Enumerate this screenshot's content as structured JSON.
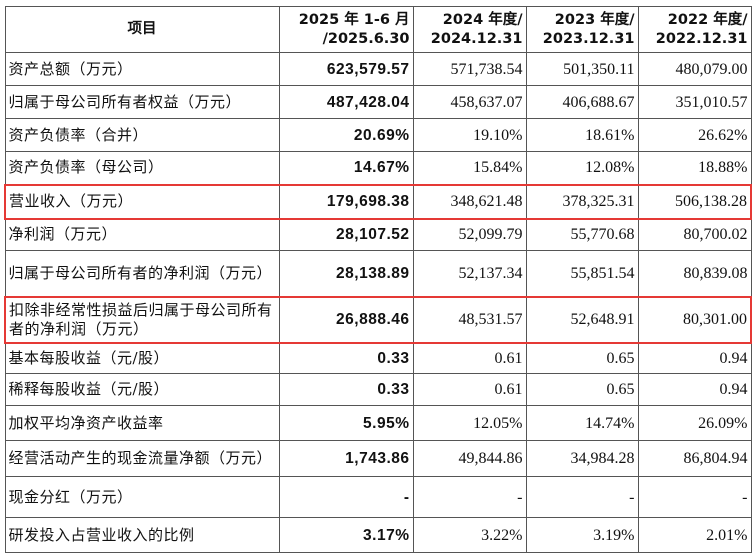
{
  "headers": [
    "项目",
    "2025 年 1-6 月\n/2025.6.30",
    "2024 年度/\n2024.12.31",
    "2023 年度/\n2023.12.31",
    "2022 年度/\n2022.12.31"
  ],
  "rows": [
    {
      "label": "资产总额（万元）",
      "values": [
        "623,579.57",
        "571,738.54",
        "501,350.11",
        "480,079.00"
      ]
    },
    {
      "label": "归属于母公司所有者权益（万元）",
      "values": [
        "487,428.04",
        "458,637.07",
        "406,688.67",
        "351,010.57"
      ]
    },
    {
      "label": "资产负债率（合并）",
      "values": [
        "20.69%",
        "19.10%",
        "18.61%",
        "26.62%"
      ]
    },
    {
      "label": "资产负债率（母公司）",
      "values": [
        "14.67%",
        "15.84%",
        "12.08%",
        "18.88%"
      ]
    },
    {
      "label": "营业收入（万元）",
      "values": [
        "179,698.38",
        "348,621.48",
        "378,325.31",
        "506,138.28"
      ],
      "highlight": true
    },
    {
      "label": "净利润（万元）",
      "values": [
        "28,107.52",
        "52,099.79",
        "55,770.68",
        "80,700.02"
      ]
    },
    {
      "label": "归属于母公司所有者的净利润（万元）",
      "values": [
        "28,138.89",
        "52,137.34",
        "55,851.54",
        "80,839.08"
      ]
    },
    {
      "label": "扣除非经常性损益后归属于母公司所有者的净利润（万元）",
      "values": [
        "26,888.46",
        "48,531.57",
        "52,648.91",
        "80,301.00"
      ],
      "highlight": true
    },
    {
      "label": "基本每股收益（元/股）",
      "values": [
        "0.33",
        "0.61",
        "0.65",
        "0.94"
      ]
    },
    {
      "label": "稀释每股收益（元/股）",
      "values": [
        "0.33",
        "0.61",
        "0.65",
        "0.94"
      ]
    },
    {
      "label": "加权平均净资产收益率",
      "values": [
        "5.95%",
        "12.05%",
        "14.74%",
        "26.09%"
      ]
    },
    {
      "label": "经营活动产生的现金流量净额（万元）",
      "values": [
        "1,743.86",
        "49,844.86",
        "34,984.28",
        "86,804.94"
      ]
    },
    {
      "label": "现金分红（万元）",
      "values": [
        "-",
        "-",
        "-",
        "-"
      ]
    },
    {
      "label": "研发投入占营业收入的比例",
      "values": [
        "3.17%",
        "3.22%",
        "3.19%",
        "2.01%"
      ]
    }
  ],
  "highlight_color": "#e53935"
}
